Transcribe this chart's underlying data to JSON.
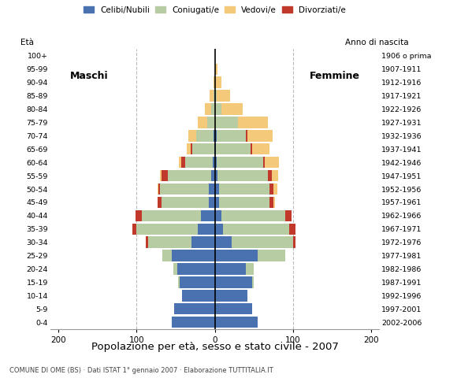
{
  "title": "Popolazione per età, sesso e stato civile - 2007",
  "subtitle": "COMUNE DI OME (BS) · Dati ISTAT 1° gennaio 2007 · Elaborazione TUTTITALIA.IT",
  "age_groups": [
    "0-4",
    "5-9",
    "10-14",
    "15-19",
    "20-24",
    "25-29",
    "30-34",
    "35-39",
    "40-44",
    "45-49",
    "50-54",
    "55-59",
    "60-64",
    "65-69",
    "70-74",
    "75-79",
    "80-84",
    "85-89",
    "90-94",
    "95-99",
    "100+"
  ],
  "birth_years": [
    "2002-2006",
    "1997-2001",
    "1992-1996",
    "1987-1991",
    "1982-1986",
    "1977-1981",
    "1972-1976",
    "1967-1971",
    "1962-1966",
    "1957-1961",
    "1952-1956",
    "1947-1951",
    "1942-1946",
    "1937-1941",
    "1932-1936",
    "1927-1931",
    "1922-1926",
    "1917-1921",
    "1912-1916",
    "1907-1911",
    "1906 o prima"
  ],
  "colors": {
    "celibi": "#4a72b0",
    "coniugati": "#b8cca4",
    "vedovi": "#f5c97a",
    "divorziati": "#c0392b"
  },
  "male": {
    "celibi": [
      55,
      52,
      42,
      45,
      48,
      55,
      30,
      22,
      18,
      8,
      8,
      5,
      3,
      1,
      2,
      0,
      0,
      0,
      0,
      0,
      0
    ],
    "coniugati": [
      0,
      0,
      0,
      2,
      5,
      12,
      55,
      78,
      75,
      60,
      62,
      55,
      35,
      28,
      22,
      10,
      5,
      2,
      0,
      0,
      0
    ],
    "vedovi": [
      0,
      0,
      0,
      0,
      0,
      0,
      0,
      0,
      0,
      0,
      1,
      2,
      3,
      5,
      10,
      12,
      8,
      5,
      2,
      0,
      0
    ],
    "divorziati": [
      0,
      0,
      0,
      0,
      0,
      0,
      3,
      5,
      8,
      5,
      2,
      8,
      5,
      2,
      0,
      0,
      0,
      0,
      0,
      0,
      0
    ]
  },
  "female": {
    "celibi": [
      55,
      48,
      42,
      48,
      40,
      55,
      22,
      10,
      8,
      5,
      5,
      3,
      2,
      1,
      2,
      0,
      0,
      0,
      0,
      0,
      0
    ],
    "coniugati": [
      0,
      0,
      0,
      2,
      10,
      35,
      78,
      85,
      82,
      65,
      65,
      65,
      60,
      45,
      38,
      30,
      8,
      2,
      0,
      0,
      0
    ],
    "vedovi": [
      0,
      0,
      0,
      0,
      0,
      0,
      0,
      0,
      0,
      2,
      5,
      8,
      18,
      22,
      32,
      38,
      28,
      18,
      8,
      3,
      0
    ],
    "divorziati": [
      0,
      0,
      0,
      0,
      0,
      0,
      3,
      8,
      8,
      5,
      5,
      5,
      2,
      2,
      2,
      0,
      0,
      0,
      0,
      0,
      0
    ]
  },
  "xlim": 210,
  "xticks": [
    -200,
    -100,
    0,
    100,
    200
  ],
  "xticklabels": [
    "200",
    "100",
    "0",
    "100",
    "200"
  ],
  "ylabel_left": "Età",
  "ylabel_right": "Anno di nascita",
  "legend_labels": [
    "Celibi/Nubili",
    "Coniugati/e",
    "Vedovi/e",
    "Divorziati/e"
  ],
  "male_label": "Maschi",
  "female_label": "Femmine",
  "background_color": "#ffffff",
  "plot_bg_color": "#ffffff",
  "grid_color": "#bbbbbb"
}
